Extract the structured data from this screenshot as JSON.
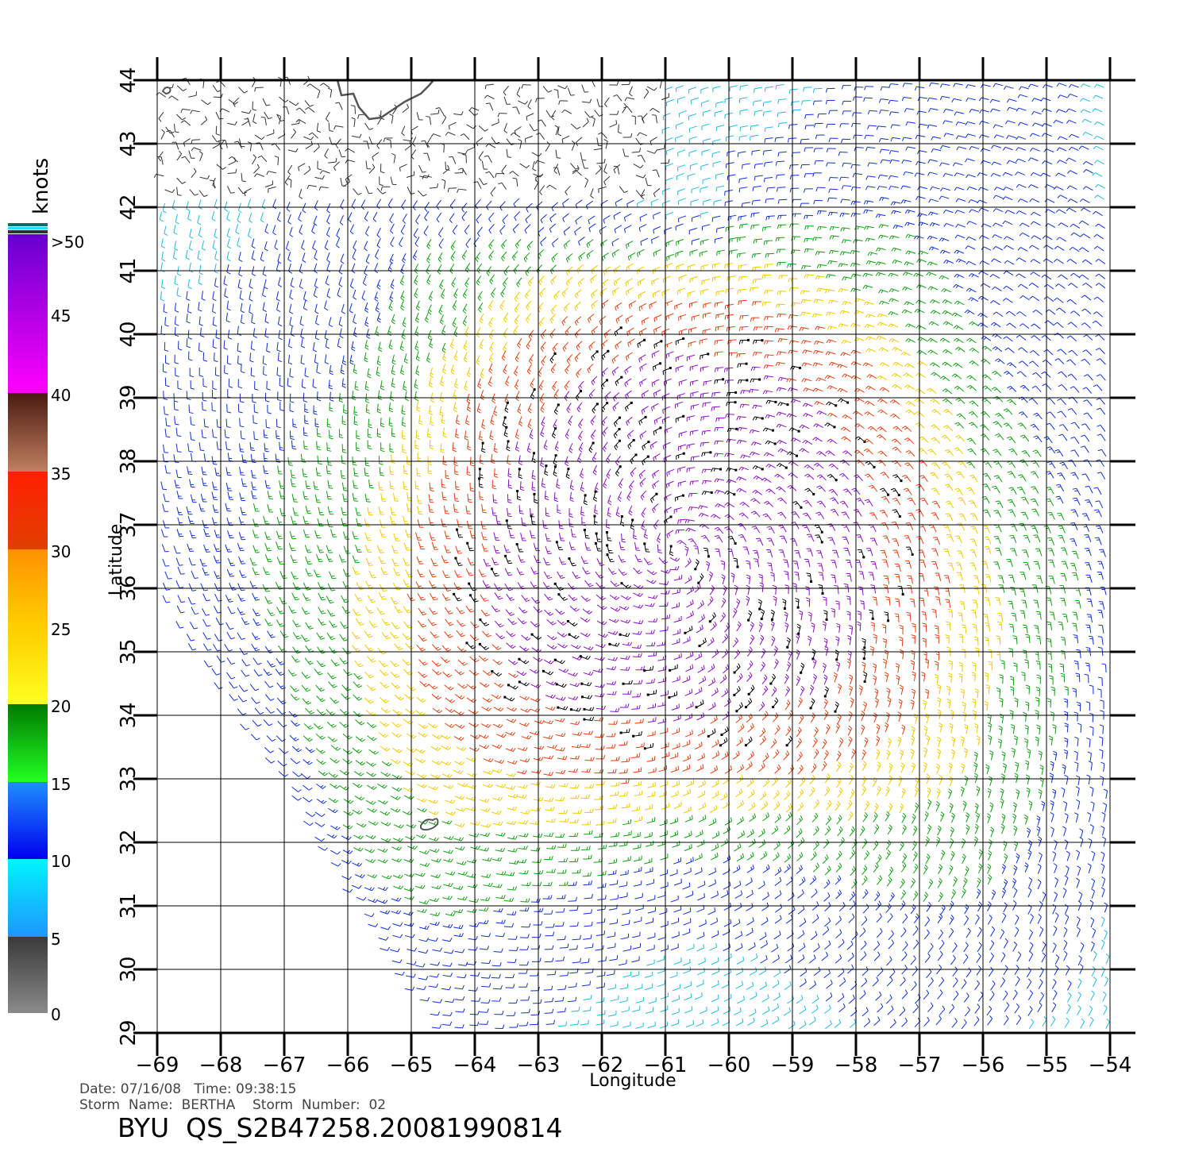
{
  "map": {
    "lon_ticks": [
      "-69",
      "-68",
      "-67",
      "-66",
      "-65",
      "-64",
      "-63",
      "-62",
      "-61",
      "-60",
      "-59",
      "-58",
      "-57",
      "-56",
      "-55",
      "-54"
    ],
    "lat_ticks": [
      "29",
      "30",
      "31",
      "32",
      "33",
      "34",
      "35",
      "36",
      "37",
      "38",
      "39",
      "40",
      "41",
      "42",
      "43",
      "44"
    ],
    "lon_range": [
      -69,
      -54
    ],
    "lat_range": [
      29,
      44
    ],
    "x_label": "Longitude",
    "y_label": "Latitude",
    "grid": true
  },
  "colorbar": {
    "unit_label": "knots",
    "tick_labels": [
      "0",
      "5",
      "10",
      "15",
      "20",
      "25",
      "30",
      "35",
      "40",
      "45",
      ">50"
    ],
    "bands": [
      {
        "from": 0,
        "to": 5,
        "top": "#3a3a3a",
        "bottom": "#8a8a8a"
      },
      {
        "from": 5,
        "to": 10,
        "top": "#00f4ff",
        "bottom": "#1e96ff"
      },
      {
        "from": 10,
        "to": 15,
        "top": "#1e90ff",
        "bottom": "#0000ee"
      },
      {
        "from": 15,
        "to": 20,
        "top": "#007a00",
        "bottom": "#22ff22"
      },
      {
        "from": 20,
        "to": 25,
        "top": "#ffcc00",
        "bottom": "#ffff22"
      },
      {
        "from": 25,
        "to": 30,
        "top": "#ff9000",
        "bottom": "#ffd000"
      },
      {
        "from": 30,
        "to": 35,
        "top": "#ff2000",
        "bottom": "#e04000"
      },
      {
        "from": 35,
        "to": 40,
        "top": "#4a1a10",
        "bottom": "#c08060"
      },
      {
        "from": 40,
        "to": 50,
        "top": "#6600cc",
        "bottom": "#ff00ff"
      }
    ]
  },
  "wind_colors": {
    "calm": "#333333",
    "light": "#22b8e0",
    "moderate": "#1030d0",
    "fresh": "#10a010",
    "strong": "#f0c800",
    "gale": "#e04010",
    "storm": "#8a10c0",
    "flagged": "#000000",
    "coast": "#555555"
  },
  "footer": {
    "date_line": "Date: 07/16/08   Time: 09:38:15",
    "storm_line": "Storm  Name:  BERTHA    Storm  Number:  02",
    "file_id": "BYU  QS_S2B47258.20081990814"
  }
}
